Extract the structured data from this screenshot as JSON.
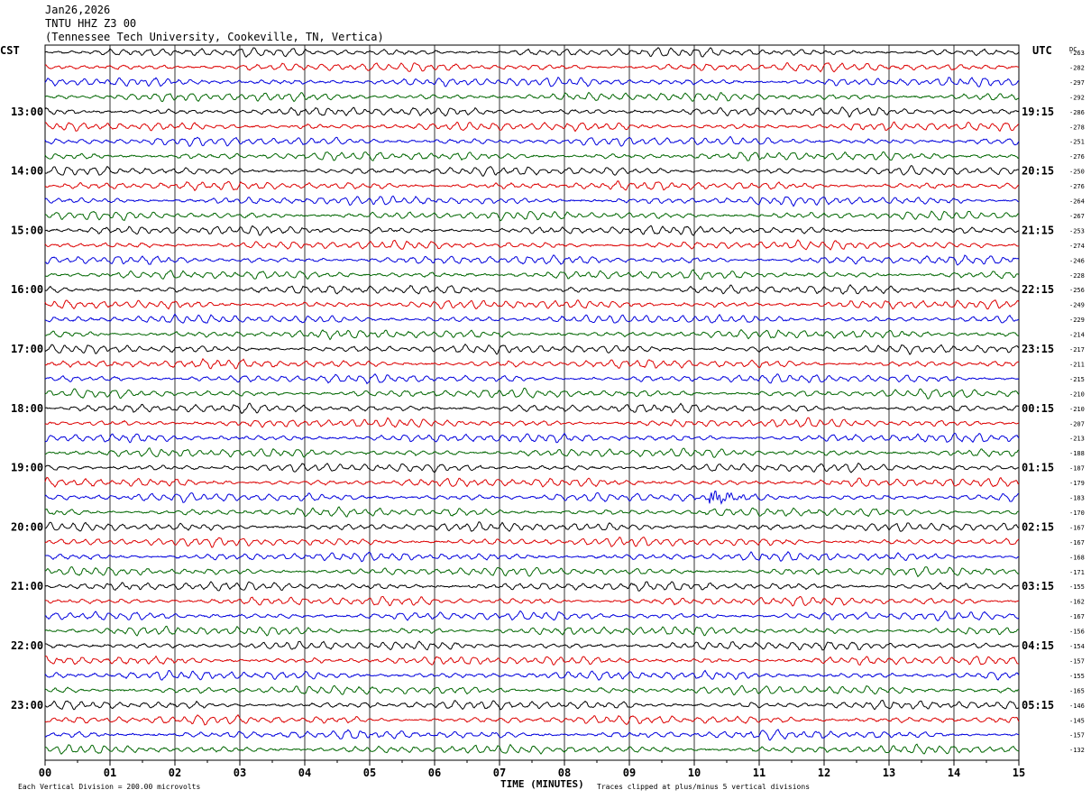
{
  "header": {
    "date": "Jan26,2026",
    "station": "TNTU HHZ Z3 00",
    "location": "(Tennessee Tech University, Cookeville, TN, Vertica)"
  },
  "footer": {
    "scale_note": "Each Vertical Division =  200.00 microvolts",
    "clip_note": "Traces clipped at plus/minus 5 vertical divisions"
  },
  "chart_data": {
    "type": "line",
    "title": "",
    "xlabel": "TIME (MINUTES)",
    "ylabel_left": "CST",
    "ylabel_right": "UTC",
    "dc_label": "DC",
    "xlim": [
      0,
      15
    ],
    "x_ticks": [
      "00",
      "01",
      "02",
      "03",
      "04",
      "05",
      "06",
      "07",
      "08",
      "09",
      "10",
      "11",
      "12",
      "13",
      "14",
      "15"
    ],
    "trace_colors": [
      "#000000",
      "#dd0000",
      "#0000dd",
      "#006600"
    ],
    "grid": "vertical lines every minute",
    "left_hour_labels": [
      "13:00",
      "14:00",
      "15:00",
      "16:00",
      "17:00",
      "18:00",
      "19:00",
      "20:00",
      "21:00",
      "22:00",
      "23:00"
    ],
    "right_hour_labels": [
      "19:15",
      "20:15",
      "21:15",
      "22:15",
      "23:15",
      "00:15",
      "01:15",
      "02:15",
      "03:15",
      "04:15",
      "05:15"
    ],
    "hour_label_start_trace": 4,
    "traces_per_hour": 4,
    "dc_offsets": [
      "-263",
      "-282",
      "-297",
      "-292",
      "-286",
      "-278",
      "-251",
      "-276",
      "-250",
      "-276",
      "-264",
      "-267",
      "-253",
      "-274",
      "-246",
      "-228",
      "-256",
      "-249",
      "-229",
      "-214",
      "-217",
      "-211",
      "-215",
      "-210",
      "-210",
      "-207",
      "-213",
      "-188",
      "-187",
      "-179",
      "-183",
      "-170",
      "-167",
      "-167",
      "-168",
      "-171",
      "-155",
      "-162",
      "-167",
      "-156",
      "-154",
      "-157",
      "-155",
      "-165",
      "-146",
      "-145",
      "-157",
      "-132"
    ],
    "events": [
      {
        "trace": 30,
        "minute": 10.3,
        "description": "small burst"
      }
    ]
  }
}
